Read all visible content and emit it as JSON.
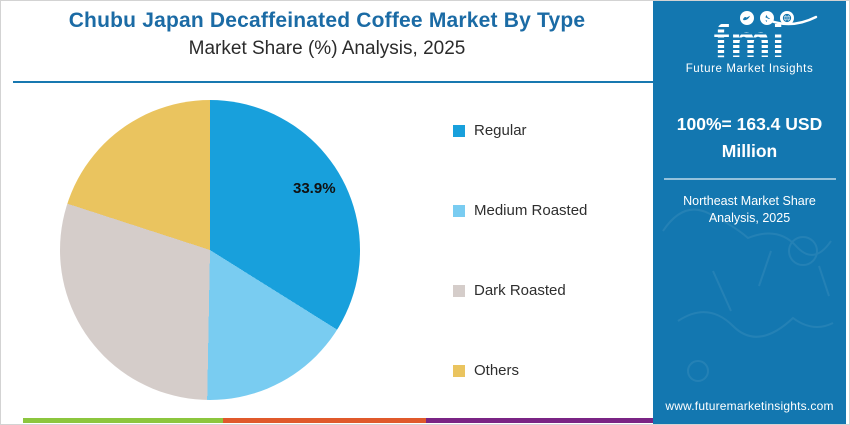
{
  "header": {
    "title": "Chubu Japan Decaffeinated Coffee Market By Type",
    "subtitle": "Market Share (%) Analysis, 2025"
  },
  "sidebar": {
    "brand": "fmi",
    "brand_tagline": "Future Market Insights",
    "stat_line": "100%= 163.4 USD Million",
    "region_note": "Northeast Market Share Analysis, 2025",
    "website": "www.futuremarketinsights.com"
  },
  "chart_data": {
    "type": "pie",
    "title": "Chubu Japan Decaffeinated Coffee Market By Type",
    "subtitle": "Market Share (%) Analysis, 2025",
    "total_note": "100%= 163.4 USD Million",
    "start_angle_deg": 0,
    "direction": "clockwise",
    "legend_position": "right",
    "slices": [
      {
        "name": "Regular",
        "value": 33.9,
        "color": "#18a0dc",
        "label": "33.9%"
      },
      {
        "name": "Medium Roasted",
        "value": 16.4,
        "color": "#79ccf1",
        "label": ""
      },
      {
        "name": "Dark Roasted",
        "value": 29.7,
        "color": "#d5cdca",
        "label": ""
      },
      {
        "name": "Others",
        "value": 20.0,
        "color": "#eac45f",
        "label": ""
      }
    ]
  },
  "footer_bars": [
    {
      "name": "green",
      "color": "#8cc63e"
    },
    {
      "name": "orange",
      "color": "#e0592b"
    },
    {
      "name": "purple",
      "color": "#7a2484"
    }
  ],
  "colors": {
    "title_blue": "#1b6ba5",
    "rule_blue": "#1878b0",
    "sidebar_bg": "#1377b0"
  }
}
